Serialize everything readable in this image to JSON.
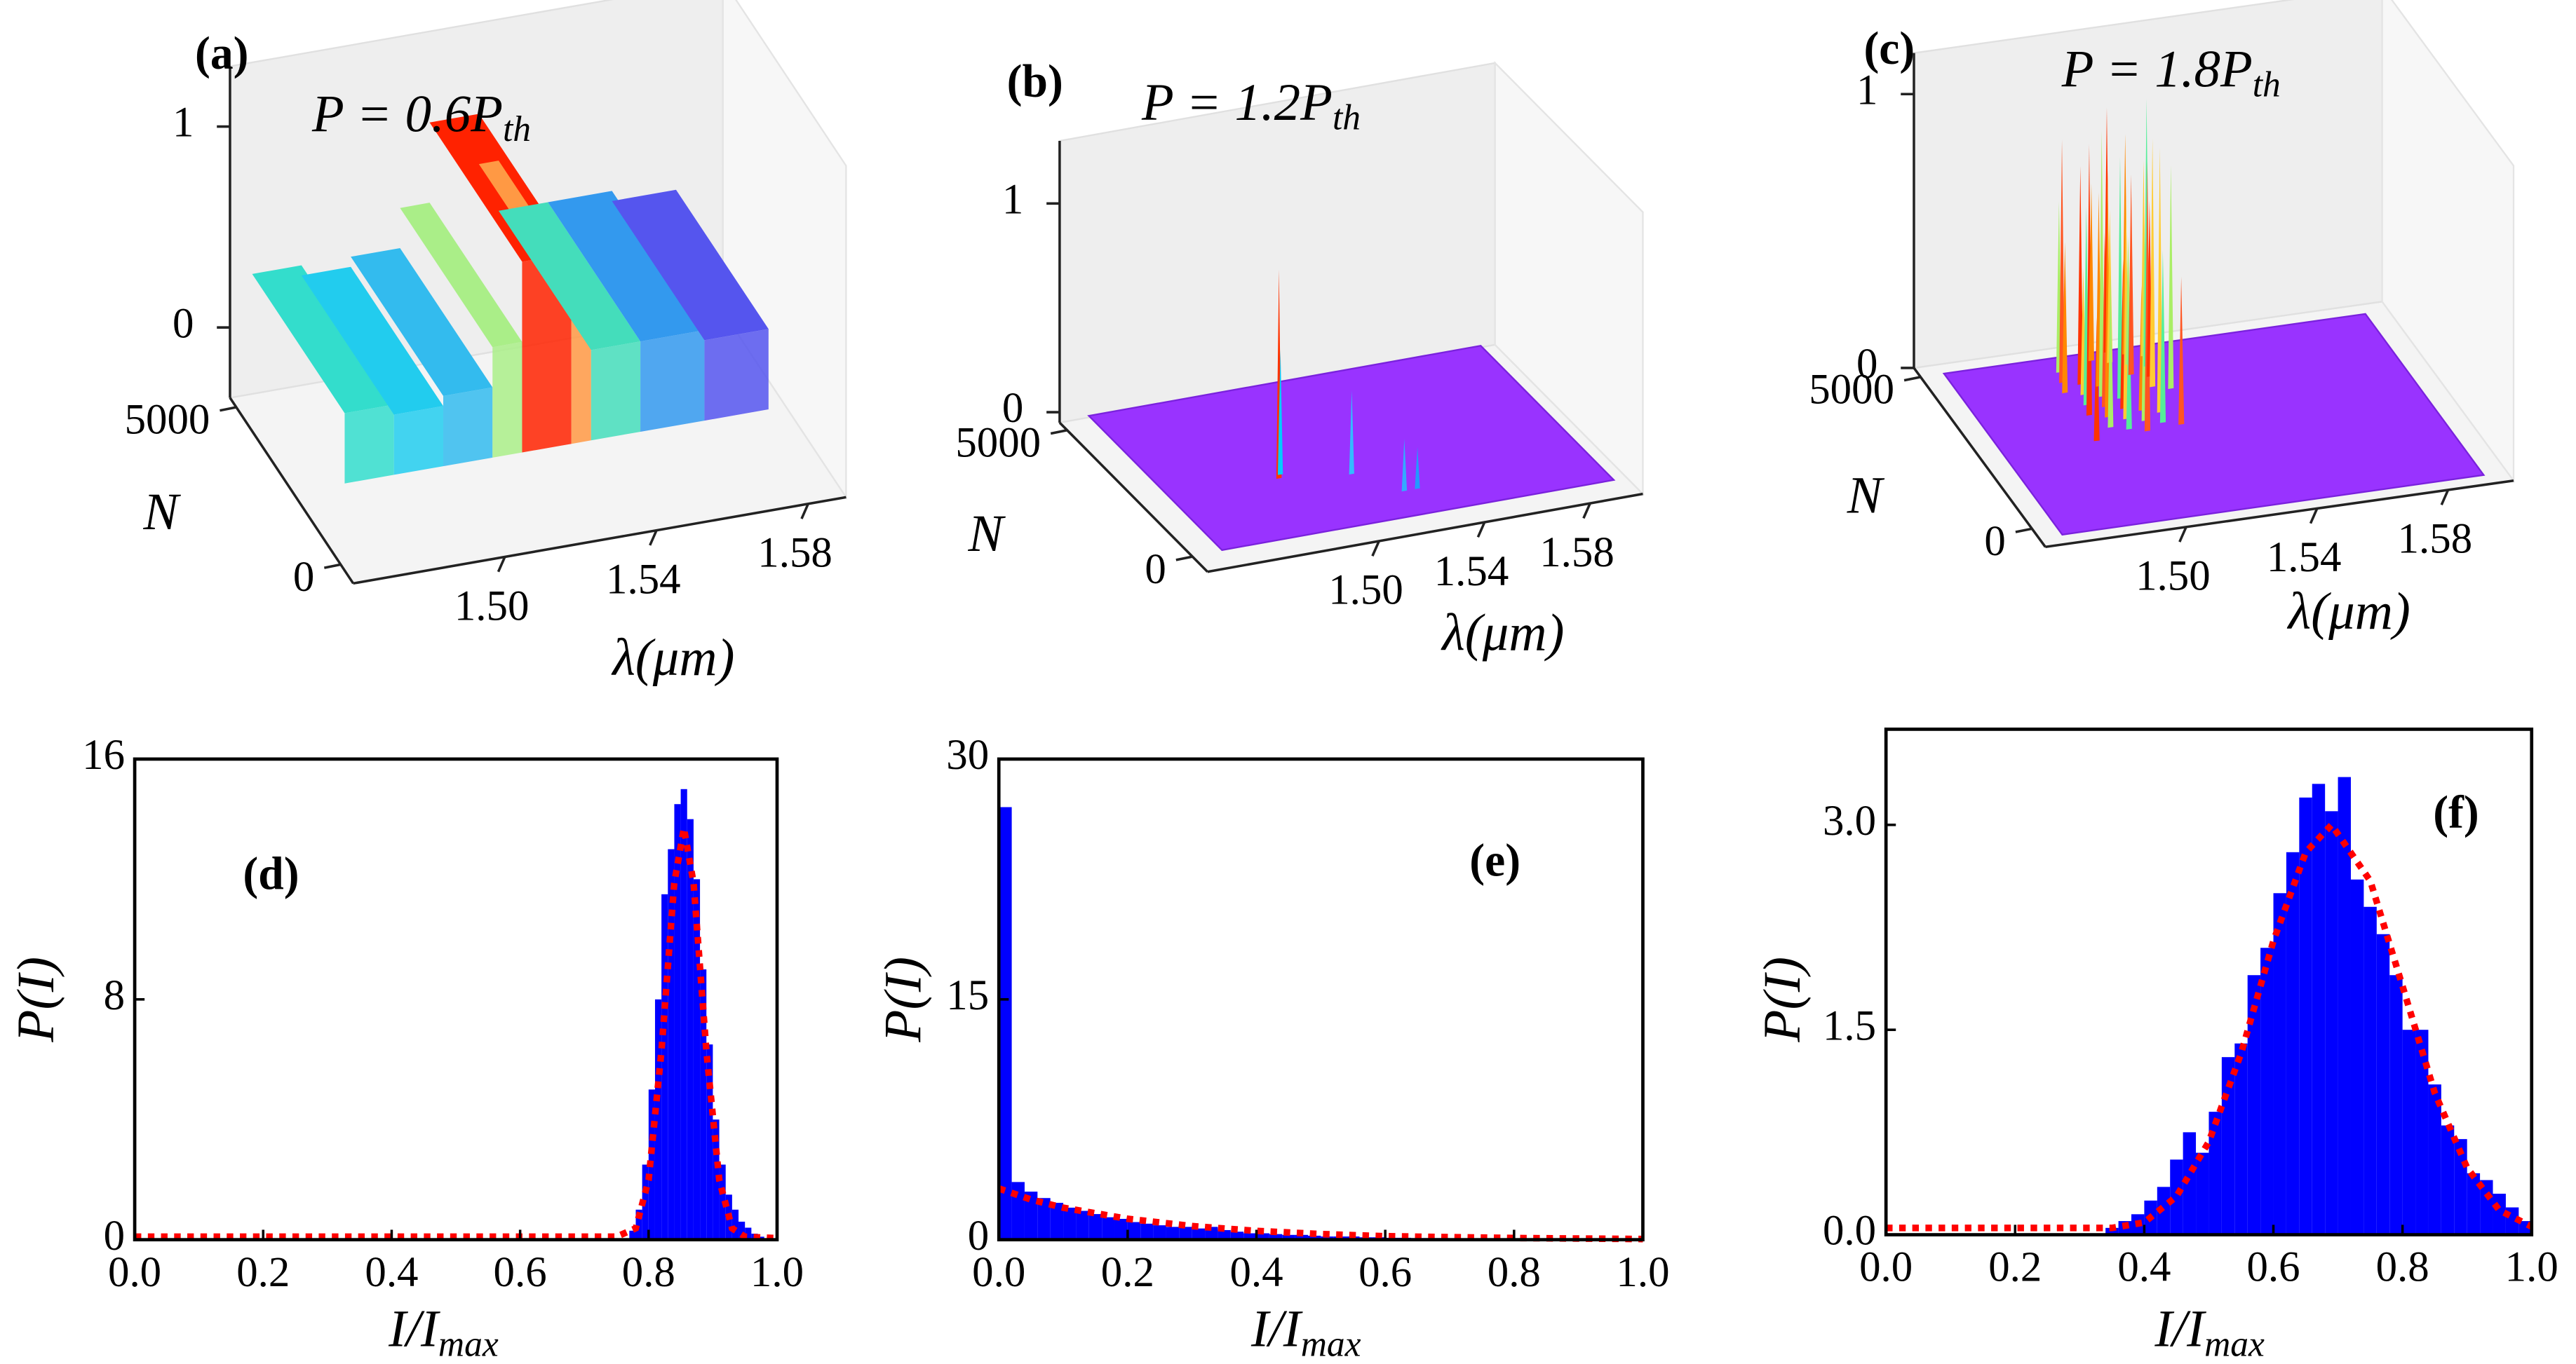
{
  "chart_data": [
    {
      "type": "surface",
      "panel_label": "(a)",
      "annotation": [
        "P = 0.6P",
        "th"
      ],
      "xlabel": "λ(μm)",
      "ylabel": "N",
      "xlim": [
        1.46,
        1.59
      ],
      "xticks": [
        {
          "value": 1.5,
          "label": "1.50"
        },
        1.54,
        1.58
      ],
      "ylim": [
        -600,
        5300
      ],
      "yticks": [
        0,
        5000
      ],
      "zlim": [
        -0.35,
        1.3
      ],
      "zticks": [
        0,
        1
      ]
    },
    {
      "type": "surface",
      "panel_label": "(b)",
      "annotation": [
        "P = 1.2P",
        "th"
      ],
      "xlabel": "λ(μm)",
      "ylabel": "N",
      "xlim": [
        1.435,
        1.6
      ],
      "xticks": [
        {
          "value": 1.5,
          "label": "1.50"
        },
        1.54,
        1.58
      ],
      "ylim": [
        -600,
        5300
      ],
      "yticks": [
        0,
        5000
      ],
      "zlim": [
        -0.05,
        1.3
      ],
      "zticks": [
        0,
        1
      ]
    },
    {
      "type": "surface",
      "panel_label": "(c)",
      "annotation": [
        "P = 1.8P",
        "th"
      ],
      "xlabel": "λ(μm)",
      "ylabel": "N",
      "xlim": [
        1.457,
        1.6
      ],
      "xticks": [
        {
          "value": 1.5,
          "label": "1.50"
        },
        1.54,
        1.58
      ],
      "ylim": [
        -600,
        5300
      ],
      "yticks": [
        0,
        5000
      ],
      "zlim": [
        0,
        1.15
      ],
      "zticks": [
        0,
        1
      ]
    },
    {
      "type": "histogram",
      "panel_label": "(d)",
      "xlabel": [
        "I/I",
        "max"
      ],
      "ylabel": "P(I)",
      "color": "#0000ff",
      "bins": [
        0.77,
        0.78,
        0.79,
        0.8,
        0.81,
        0.82,
        0.83,
        0.84,
        0.85,
        0.86,
        0.87,
        0.88,
        0.89,
        0.9,
        0.91,
        0.92,
        0.93,
        0.94,
        0.95,
        0.96,
        0.97,
        0.98
      ],
      "values": [
        0.3,
        1,
        2.5,
        5,
        8,
        11.5,
        13,
        14.5,
        15,
        14,
        12,
        9,
        6.5,
        4,
        2.5,
        1.5,
        1,
        0.6,
        0.4,
        0.2,
        0.1
      ],
      "fit": {
        "color": "#ff0000",
        "x": [
          0,
          0.7,
          0.75,
          0.78,
          0.8,
          0.82,
          0.84,
          0.855,
          0.87,
          0.89,
          0.91,
          0.93,
          0.95,
          1.0
        ],
        "values": [
          0.1,
          0.1,
          0.1,
          0.38,
          1.99,
          6.27,
          11.87,
          13.7,
          11.87,
          6.27,
          1.99,
          0.38,
          0.1,
          0.05
        ]
      },
      "xlim": [
        0,
        1
      ],
      "xticks": [
        {
          "value": 0,
          "label": "0.0"
        },
        0.2,
        0.4,
        0.6,
        0.8,
        {
          "value": 1,
          "label": "1.0"
        }
      ],
      "ylim": [
        0,
        16
      ],
      "yticks": [
        0,
        8,
        16
      ]
    },
    {
      "type": "histogram",
      "panel_label": "(e)",
      "xlabel": [
        "I/I",
        "max"
      ],
      "ylabel": "P(I)",
      "color": "#0000ff",
      "bins": [
        0,
        0.02,
        0.04,
        0.06,
        0.08,
        0.1,
        0.12,
        0.14,
        0.16,
        0.18,
        0.2,
        0.22,
        0.24,
        0.26,
        0.28,
        0.3,
        0.32,
        0.34,
        0.36,
        0.38,
        0.4,
        0.42,
        0.44,
        0.46,
        0.48,
        0.5,
        0.52,
        0.54,
        0.56,
        0.58,
        0.6,
        0.62,
        0.64,
        0.66,
        0.68,
        0.7,
        0.72,
        0.74,
        0.76,
        0.78,
        0.8,
        0.82,
        0.84,
        0.86,
        0.88,
        0.9,
        0.92,
        0.94,
        0.96,
        0.98,
        1.0
      ],
      "values": [
        27,
        3.6,
        3.0,
        2.6,
        2.3,
        2.0,
        1.8,
        1.6,
        1.4,
        1.3,
        1.1,
        1.0,
        0.9,
        0.8,
        0.8,
        0.7,
        0.8,
        0.6,
        0.5,
        0.4,
        0.4,
        0.35,
        0.3,
        0.3,
        0.25,
        0.2,
        0.2,
        0.2,
        0.15,
        0.15,
        0.12,
        0.12,
        0.1,
        0.1,
        0.1,
        0.08,
        0.08,
        0.06,
        0.06,
        0.05,
        0.05,
        0.04,
        0.04,
        0.03,
        0.03,
        0.03,
        0.02,
        0.02,
        0.02,
        0.02
      ],
      "fit": {
        "color": "#ff0000",
        "x": [
          0,
          0.05,
          0.1,
          0.2,
          0.3,
          0.4,
          0.5,
          0.6,
          0.8,
          1.0
        ],
        "values": [
          3.2,
          2.5,
          2.0,
          1.3,
          0.85,
          0.55,
          0.35,
          0.22,
          0.1,
          0.04
        ]
      },
      "xlim": [
        0,
        1
      ],
      "xticks": [
        {
          "value": 0,
          "label": "0.0"
        },
        0.2,
        0.4,
        0.6,
        0.8,
        {
          "value": 1,
          "label": "1.0"
        }
      ],
      "ylim": [
        0,
        30
      ],
      "yticks": [
        0,
        15,
        30
      ]
    },
    {
      "type": "histogram",
      "panel_label": "(f)",
      "xlabel": [
        "I/I",
        "max"
      ],
      "ylabel": "P(I)",
      "color": "#0000ff",
      "bins": [
        0.34,
        0.36,
        0.38,
        0.4,
        0.42,
        0.44,
        0.46,
        0.48,
        0.5,
        0.52,
        0.54,
        0.56,
        0.58,
        0.6,
        0.62,
        0.64,
        0.66,
        0.68,
        0.7,
        0.72,
        0.74,
        0.76,
        0.78,
        0.8,
        0.82,
        0.84,
        0.86,
        0.88,
        0.9,
        0.92,
        0.94,
        0.96,
        0.98,
        1.0
      ],
      "values": [
        0.05,
        0.1,
        0.15,
        0.25,
        0.35,
        0.55,
        0.75,
        0.6,
        0.9,
        1.3,
        1.4,
        1.9,
        2.1,
        2.5,
        2.8,
        3.2,
        3.3,
        3.1,
        3.35,
        2.6,
        2.4,
        2.2,
        1.9,
        1.5,
        1.5,
        1.1,
        0.8,
        0.7,
        0.45,
        0.4,
        0.3,
        0.2,
        0.1
      ],
      "fit": {
        "color": "#ff0000",
        "x": [
          0,
          0.2,
          0.3,
          0.35,
          0.4,
          0.45,
          0.5,
          0.55,
          0.6,
          0.65,
          0.69,
          0.75,
          0.8,
          0.85,
          0.9,
          0.95,
          1.0
        ],
        "values": [
          0.05,
          0.05,
          0.05,
          0.05,
          0.09,
          0.28,
          0.68,
          1.33,
          2.15,
          2.8,
          3.0,
          2.59,
          1.82,
          1.04,
          0.49,
          0.18,
          0.06
        ]
      },
      "xlim": [
        0,
        1
      ],
      "xticks": [
        {
          "value": 0,
          "label": "0.0"
        },
        0.2,
        0.4,
        0.6,
        0.8,
        {
          "value": 1,
          "label": "1.0"
        }
      ],
      "ylim": [
        0,
        3.7
      ],
      "yticks": [
        {
          "value": 0,
          "label": "0.0"
        },
        1.5,
        {
          "value": 3,
          "label": "3.0"
        }
      ]
    }
  ]
}
